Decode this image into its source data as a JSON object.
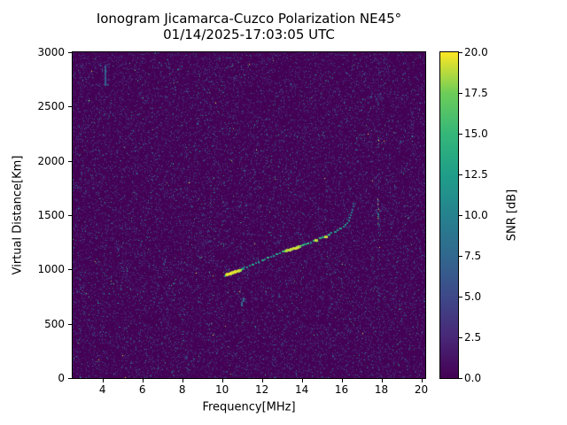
{
  "chart_data": {
    "type": "heatmap",
    "title": "Ionogram Jicamarca-Cuzco Polarization NE45°",
    "subtitle": "01/14/2025-17:03:05 UTC",
    "xlabel": "Frequency[MHz]",
    "ylabel": "Virtual Distance[Km]",
    "colorbar_label": "SNR [dB]",
    "colormap": "viridis",
    "xlim": [
      2.5,
      20.2
    ],
    "ylim": [
      0,
      3000
    ],
    "clim": [
      0,
      20
    ],
    "xticks": [
      4,
      6,
      8,
      10,
      12,
      14,
      16,
      18,
      20
    ],
    "xtick_labels": [
      "4",
      "6",
      "8",
      "10",
      "12",
      "14",
      "16",
      "18",
      "20"
    ],
    "yticks": [
      0,
      500,
      1000,
      1500,
      2000,
      2500,
      3000
    ],
    "ytick_labels": [
      "0",
      "500",
      "1000",
      "1500",
      "2000",
      "2500",
      "3000"
    ],
    "colorbar_ticks": [
      0,
      2.5,
      5,
      7.5,
      10,
      12.5,
      15,
      17.5,
      20
    ],
    "colorbar_tick_labels": [
      "0.0",
      "2.5",
      "5.0",
      "7.5",
      "10.0",
      "12.5",
      "15.0",
      "17.5",
      "20.0"
    ],
    "viridis_stops": [
      "#440154",
      "#482878",
      "#3e4989",
      "#31688e",
      "#26828e",
      "#1f9e89",
      "#35b779",
      "#6dcd59",
      "#fde725"
    ],
    "background_snr_db": 0,
    "noise": {
      "density": 0.22,
      "mean_snr_db": 2.6,
      "seed": 7
    },
    "rfi_stripes": [
      {
        "freq_mhz": 17.85,
        "h_range": [
          0,
          3000
        ],
        "density": 0.35,
        "mean_snr_db": 4
      },
      {
        "freq_mhz": 17.8,
        "h_range": [
          1400,
          1650
        ],
        "density": 0.95,
        "mean_snr_db": 11
      },
      {
        "freq_mhz": 9.35,
        "h_range": [
          0,
          3000
        ],
        "density": 0.2,
        "mean_snr_db": 3.5
      }
    ],
    "echo_dashes": [
      {
        "freq_mhz": 4.1,
        "h_range": [
          2700,
          2870
        ],
        "snr_db": 7
      },
      {
        "freq_mhz": 10.95,
        "h_range": [
          675,
          700
        ],
        "snr_db": 9
      },
      {
        "freq_mhz": 11.05,
        "h_range": [
          715,
          740
        ],
        "snr_db": 8
      }
    ],
    "echo_trace": [
      [
        10.15,
        935,
        13
      ],
      [
        10.2,
        945,
        17
      ],
      [
        10.25,
        952,
        20
      ],
      [
        10.3,
        958,
        20
      ],
      [
        10.35,
        962,
        20
      ],
      [
        10.4,
        966,
        20
      ],
      [
        10.45,
        969,
        20
      ],
      [
        10.5,
        972,
        20
      ],
      [
        10.55,
        975,
        20
      ],
      [
        10.6,
        978,
        20
      ],
      [
        10.65,
        981,
        20
      ],
      [
        10.7,
        984,
        20
      ],
      [
        10.75,
        987,
        20
      ],
      [
        10.8,
        990,
        19
      ],
      [
        10.85,
        993,
        20
      ],
      [
        10.9,
        996,
        18
      ],
      [
        11.0,
        1003,
        15
      ],
      [
        11.1,
        1011,
        12
      ],
      [
        11.25,
        1021,
        13
      ],
      [
        11.4,
        1033,
        12
      ],
      [
        11.55,
        1045,
        14
      ],
      [
        11.7,
        1057,
        12
      ],
      [
        11.85,
        1069,
        13
      ],
      [
        12.0,
        1081,
        14
      ],
      [
        12.15,
        1093,
        12
      ],
      [
        12.3,
        1105,
        15
      ],
      [
        12.45,
        1117,
        12
      ],
      [
        12.6,
        1129,
        13
      ],
      [
        12.75,
        1141,
        14
      ],
      [
        12.9,
        1152,
        13
      ],
      [
        13.05,
        1163,
        16
      ],
      [
        13.2,
        1172,
        19
      ],
      [
        13.3,
        1178,
        20
      ],
      [
        13.4,
        1184,
        20
      ],
      [
        13.5,
        1190,
        20
      ],
      [
        13.6,
        1196,
        20
      ],
      [
        13.7,
        1202,
        20
      ],
      [
        13.8,
        1208,
        20
      ],
      [
        13.9,
        1214,
        19
      ],
      [
        14.0,
        1220,
        16
      ],
      [
        14.15,
        1230,
        14
      ],
      [
        14.3,
        1240,
        16
      ],
      [
        14.45,
        1250,
        13
      ],
      [
        14.6,
        1261,
        15
      ],
      [
        14.75,
        1272,
        20
      ],
      [
        14.9,
        1284,
        16
      ],
      [
        15.05,
        1296,
        14
      ],
      [
        15.2,
        1308,
        20
      ],
      [
        15.35,
        1321,
        15
      ],
      [
        15.5,
        1334,
        13
      ],
      [
        15.65,
        1348,
        14
      ],
      [
        15.8,
        1363,
        13
      ],
      [
        15.95,
        1379,
        14
      ],
      [
        16.1,
        1396,
        12
      ],
      [
        16.2,
        1412,
        13
      ],
      [
        16.3,
        1430,
        12
      ],
      [
        16.38,
        1450,
        11
      ],
      [
        16.44,
        1472,
        11
      ],
      [
        16.48,
        1496,
        10
      ],
      [
        16.52,
        1522,
        10
      ],
      [
        16.55,
        1550,
        9
      ],
      [
        16.58,
        1578,
        9
      ],
      [
        16.6,
        1608,
        8
      ]
    ]
  }
}
